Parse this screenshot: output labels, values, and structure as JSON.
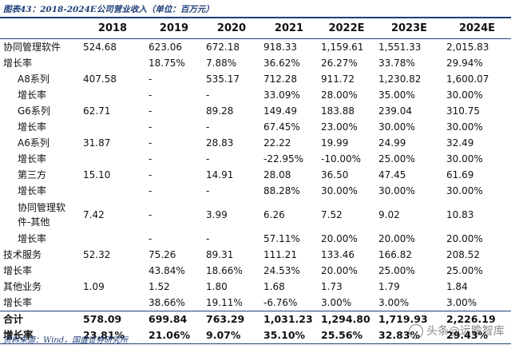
{
  "caption": "图表43：2018-2024E公司营业收入（单位：百万元）",
  "table": {
    "columns": [
      "",
      "2018",
      "2019",
      "2020",
      "2021",
      "2022E",
      "2023E",
      "2024E"
    ],
    "rows": [
      {
        "label": "协同管理软件",
        "values": [
          "524.68",
          "623.06",
          "672.18",
          "918.33",
          "1,159.61",
          "1,551.33",
          "2,015.83"
        ]
      },
      {
        "label": "增长率",
        "values": [
          "",
          "18.75%",
          "7.88%",
          "36.62%",
          "26.27%",
          "33.78%",
          "29.94%"
        ]
      },
      {
        "label": "A8系列",
        "values": [
          "407.58",
          "-",
          "535.17",
          "712.28",
          "911.72",
          "1,230.82",
          "1,600.07"
        ]
      },
      {
        "label": "增长率",
        "values": [
          "",
          "-",
          "-",
          "33.09%",
          "28.00%",
          "35.00%",
          "30.00%"
        ]
      },
      {
        "label": "G6系列",
        "values": [
          "62.71",
          "-",
          "89.28",
          "149.49",
          "183.88",
          "239.04",
          "310.75"
        ]
      },
      {
        "label": "增长率",
        "values": [
          "",
          "-",
          "-",
          "67.45%",
          "23.00%",
          "30.00%",
          "30.00%"
        ]
      },
      {
        "label": "A6系列",
        "values": [
          "31.87",
          "-",
          "28.83",
          "22.22",
          "19.99",
          "24.99",
          "32.49"
        ]
      },
      {
        "label": "增长率",
        "values": [
          "",
          "-",
          "-",
          "-22.95%",
          "-10.00%",
          "25.00%",
          "30.00%"
        ]
      },
      {
        "label": "第三方",
        "values": [
          "15.10",
          "-",
          "14.91",
          "28.08",
          "36.50",
          "47.45",
          "61.69"
        ]
      },
      {
        "label": "增长率",
        "values": [
          "",
          "-",
          "-",
          "88.28%",
          "30.00%",
          "30.00%",
          "30.00%"
        ]
      },
      {
        "label": "协同管理软件-其他",
        "values": [
          "7.42",
          "-",
          "3.99",
          "6.26",
          "7.52",
          "9.02",
          "10.83"
        ]
      },
      {
        "label": "增长率",
        "values": [
          "",
          "-",
          "-",
          "57.11%",
          "20.00%",
          "20.00%",
          "20.00%"
        ]
      },
      {
        "label": "技术服务",
        "values": [
          "52.32",
          "75.26",
          "89.31",
          "111.21",
          "133.46",
          "166.82",
          "208.52"
        ]
      },
      {
        "label": "增长率",
        "values": [
          "",
          "43.84%",
          "18.66%",
          "24.53%",
          "20.00%",
          "25.00%",
          "25.00%"
        ]
      },
      {
        "label": "其他业务",
        "values": [
          "1.09",
          "1.52",
          "1.80",
          "1.68",
          "1.73",
          "1.79",
          "1.84"
        ]
      },
      {
        "label": "增长率",
        "values": [
          "",
          "38.66%",
          "19.11%",
          "-6.76%",
          "3.00%",
          "3.00%",
          "3.00%"
        ]
      },
      {
        "label": "合计",
        "values": [
          "578.09",
          "699.84",
          "763.29",
          "1,031.23",
          "1,294.80",
          "1,719.93",
          "2,226.19"
        ]
      },
      {
        "label": "增长率",
        "values": [
          "23.81%",
          "21.06%",
          "9.07%",
          "35.10%",
          "25.56%",
          "32.83%",
          "29.43%"
        ]
      }
    ]
  },
  "source": "资料来源：Wind，国盛证券研究所",
  "watermark": "头条@远瞻智库",
  "colors": {
    "accent": "#1f3f78"
  }
}
